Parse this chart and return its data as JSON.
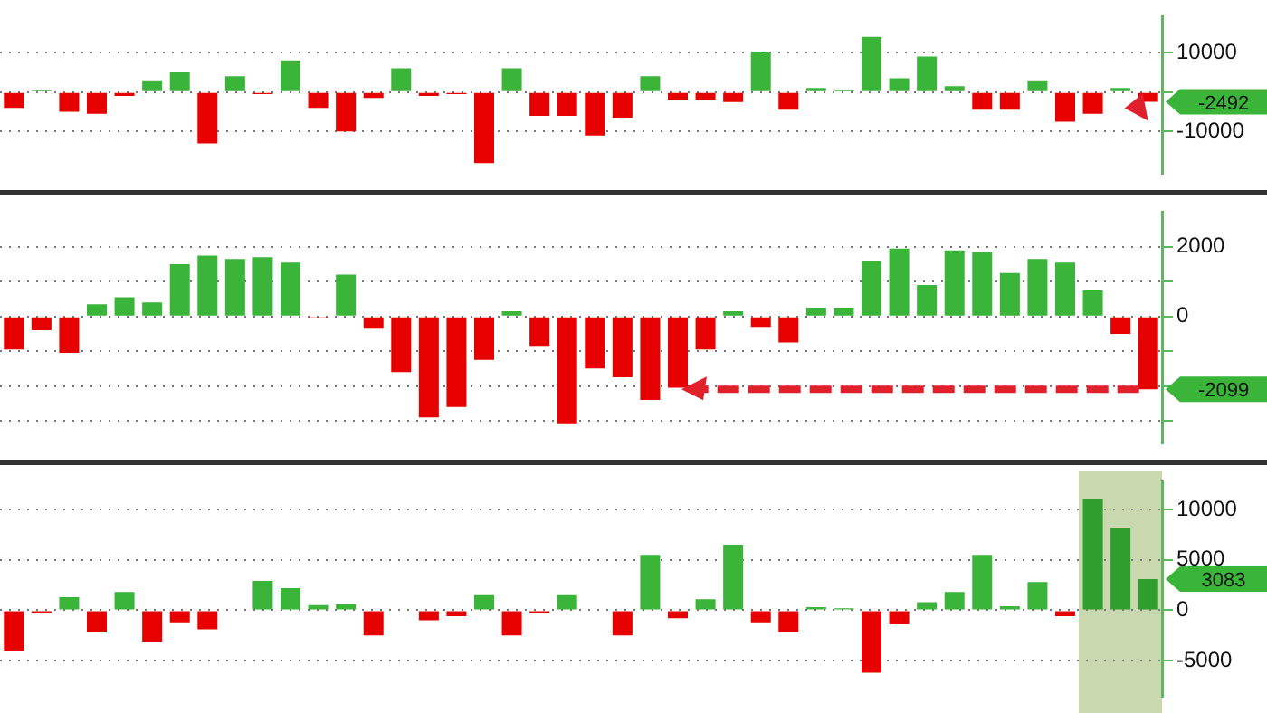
{
  "chart_data": [
    {
      "type": "bar",
      "categories": [
        null,
        null,
        null,
        null,
        null,
        null,
        null,
        null,
        null,
        null,
        null,
        null,
        null,
        null,
        null,
        null,
        null,
        null,
        null,
        null,
        null,
        null,
        null,
        null,
        null,
        null,
        null,
        null,
        null,
        null,
        null,
        null,
        null,
        null,
        null,
        null,
        null,
        null,
        null,
        null,
        null,
        null
      ],
      "values": [
        -4000,
        500,
        -5000,
        -5500,
        -1000,
        3000,
        5000,
        -13000,
        4000,
        -500,
        8000,
        -4000,
        -10000,
        -1500,
        6000,
        -1000,
        -500,
        -18000,
        6000,
        -6000,
        -6000,
        -11000,
        -6500,
        4000,
        -2000,
        -2000,
        -2500,
        10000,
        -4500,
        1000,
        500,
        14000,
        3500,
        9000,
        1500,
        -4500,
        -4500,
        3000,
        -7500,
        -5500,
        1000,
        -2492
      ],
      "colors": [
        "#e60000",
        "#3ab53a",
        "#e60000",
        "#e60000",
        "#e60000",
        "#3ab53a",
        "#3ab53a",
        "#e60000",
        "#3ab53a",
        "#e60000",
        "#3ab53a",
        "#e60000",
        "#e60000",
        "#e60000",
        "#3ab53a",
        "#e60000",
        "#e60000",
        "#e60000",
        "#3ab53a",
        "#e60000",
        "#e60000",
        "#e60000",
        "#e60000",
        "#3ab53a",
        "#e60000",
        "#e60000",
        "#e60000",
        "#3ab53a",
        "#e60000",
        "#3ab53a",
        "#3ab53a",
        "#3ab53a",
        "#3ab53a",
        "#3ab53a",
        "#3ab53a",
        "#e60000",
        "#e60000",
        "#3ab53a",
        "#e60000",
        "#e60000",
        "#3ab53a",
        "#e60000"
      ],
      "ylim": [
        -20600,
        19100
      ],
      "yticks": [
        -10000,
        {
          "value": 0,
          "label": null
        },
        10000
      ],
      "grid": "y",
      "tick_labels": "y",
      "annotations": [
        "-2492"
      ]
    },
    {
      "type": "bar",
      "categories": [
        null,
        null,
        null,
        null,
        null,
        null,
        null,
        null,
        null,
        null,
        null,
        null,
        null,
        null,
        null,
        null,
        null,
        null,
        null,
        null,
        null,
        null,
        null,
        null,
        null,
        null,
        null,
        null,
        null,
        null,
        null,
        null,
        null,
        null,
        null,
        null,
        null,
        null,
        null,
        null,
        null,
        null
      ],
      "values": [
        -950,
        -400,
        -1050,
        350,
        550,
        400,
        1500,
        1750,
        1650,
        1700,
        1550,
        -50,
        1200,
        -350,
        -1600,
        -2900,
        -2600,
        -1250,
        150,
        -850,
        -3100,
        -1500,
        -1750,
        -2400,
        -2050,
        -950,
        150,
        -300,
        -750,
        250,
        250,
        1600,
        1950,
        900,
        1900,
        1850,
        1250,
        1650,
        1550,
        750,
        -500,
        -2099
      ],
      "colors": [
        "#e60000",
        "#e60000",
        "#e60000",
        "#3ab53a",
        "#3ab53a",
        "#3ab53a",
        "#3ab53a",
        "#3ab53a",
        "#3ab53a",
        "#3ab53a",
        "#3ab53a",
        "#e60000",
        "#3ab53a",
        "#e60000",
        "#e60000",
        "#e60000",
        "#e60000",
        "#e60000",
        "#3ab53a",
        "#e60000",
        "#e60000",
        "#e60000",
        "#e60000",
        "#e60000",
        "#e60000",
        "#e60000",
        "#3ab53a",
        "#e60000",
        "#e60000",
        "#3ab53a",
        "#3ab53a",
        "#3ab53a",
        "#3ab53a",
        "#3ab53a",
        "#3ab53a",
        "#3ab53a",
        "#3ab53a",
        "#3ab53a",
        "#3ab53a",
        "#3ab53a",
        "#e60000",
        "#e60000"
      ],
      "ylim": [
        -3640,
        3000
      ],
      "yticks": [
        {
          "value": -3000,
          "label": null
        },
        {
          "value": -2000,
          "label": null
        },
        {
          "value": -1000,
          "label": null
        },
        0,
        {
          "value": 1000,
          "label": null
        },
        2000
      ],
      "grid": "y",
      "tick_labels": "y",
      "annotations": [
        "-2099"
      ]
    },
    {
      "type": "bar",
      "categories": [
        null,
        null,
        null,
        null,
        null,
        null,
        null,
        null,
        null,
        null,
        null,
        null,
        null,
        null,
        null,
        null,
        null,
        null,
        null,
        null,
        null,
        null,
        null,
        null,
        null,
        null,
        null,
        null,
        null,
        null,
        null,
        null,
        null,
        null,
        null,
        null,
        null,
        null,
        null,
        null,
        null,
        null
      ],
      "values": [
        -4000,
        -300,
        1300,
        -2200,
        1800,
        -3100,
        -1200,
        -1900,
        -100,
        2900,
        2200,
        500,
        600,
        -2500,
        -100,
        -1000,
        -600,
        1500,
        -2500,
        -300,
        1500,
        -100,
        -2500,
        5500,
        -800,
        1100,
        6500,
        -1200,
        -2200,
        300,
        200,
        -6200,
        -1400,
        800,
        1800,
        5500,
        400,
        2800,
        -600,
        11000,
        8200,
        3083
      ],
      "colors": [
        "#e60000",
        "#e60000",
        "#3ab53a",
        "#e60000",
        "#3ab53a",
        "#e60000",
        "#e60000",
        "#e60000",
        "#e60000",
        "#3ab53a",
        "#3ab53a",
        "#3ab53a",
        "#3ab53a",
        "#e60000",
        "#e60000",
        "#e60000",
        "#e60000",
        "#3ab53a",
        "#e60000",
        "#e60000",
        "#3ab53a",
        "#e60000",
        "#e60000",
        "#3ab53a",
        "#e60000",
        "#3ab53a",
        "#3ab53a",
        "#e60000",
        "#e60000",
        "#3ab53a",
        "#3ab53a",
        "#e60000",
        "#e60000",
        "#3ab53a",
        "#3ab53a",
        "#3ab53a",
        "#3ab53a",
        "#3ab53a",
        "#e60000",
        "#2f9e2f",
        "#2f9e2f",
        "#2f9e2f"
      ],
      "ylim": [
        -8550,
        12750
      ],
      "yticks": [
        -5000,
        0,
        5000,
        10000
      ],
      "grid": "y",
      "tick_labels": "y",
      "annotations": [
        "3083"
      ]
    }
  ]
}
